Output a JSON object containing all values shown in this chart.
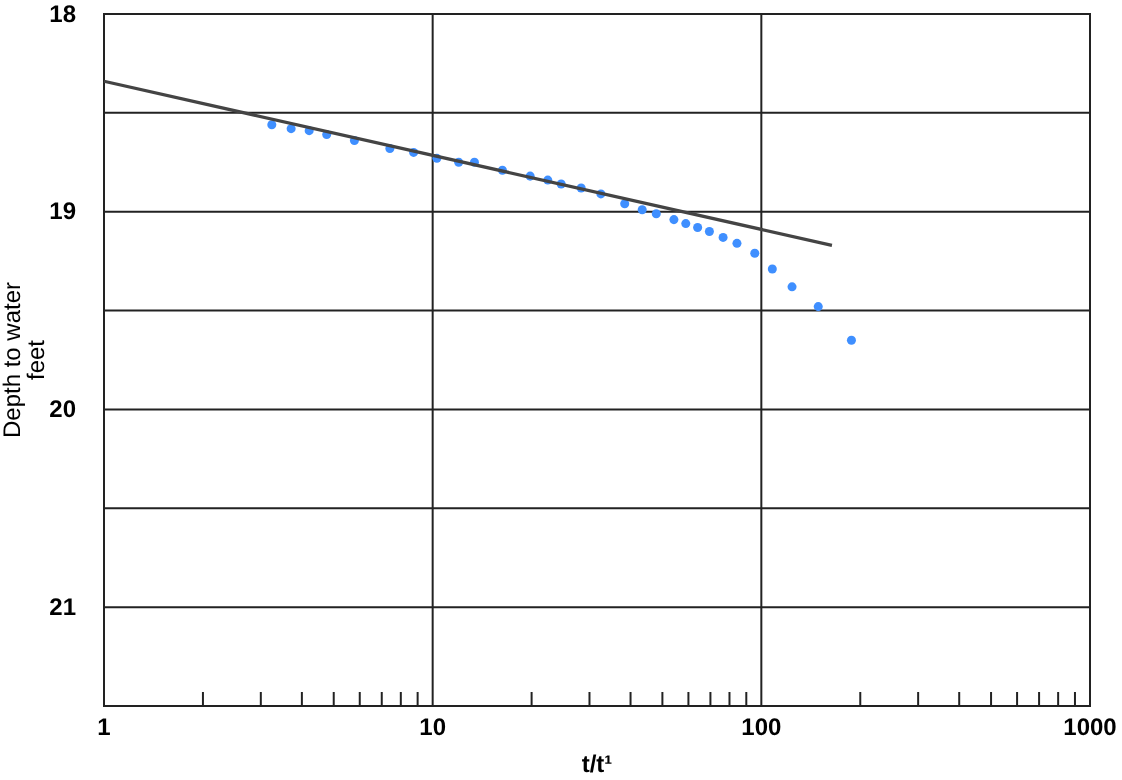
{
  "chart_data": {
    "type": "scatter",
    "xlabel": "t/t¹",
    "ylabel": "Depth to water\nfeet",
    "log": "x",
    "grid": true,
    "xlim": [
      1,
      1000
    ],
    "xticks": [
      1,
      {
        "value": 2,
        "label": null
      },
      {
        "value": 3,
        "label": null
      },
      {
        "value": 4,
        "label": null
      },
      {
        "value": 5,
        "label": null
      },
      {
        "value": 6,
        "label": null
      },
      {
        "value": 7,
        "label": null
      },
      {
        "value": 8,
        "label": null
      },
      {
        "value": 9,
        "label": null
      },
      10,
      {
        "value": 20,
        "label": null
      },
      {
        "value": 30,
        "label": null
      },
      {
        "value": 40,
        "label": null
      },
      {
        "value": 50,
        "label": null
      },
      {
        "value": 60,
        "label": null
      },
      {
        "value": 70,
        "label": null
      },
      {
        "value": 80,
        "label": null
      },
      {
        "value": 90,
        "label": null
      },
      100,
      {
        "value": 200,
        "label": null
      },
      {
        "value": 300,
        "label": null
      },
      {
        "value": 400,
        "label": null
      },
      {
        "value": 500,
        "label": null
      },
      {
        "value": 600,
        "label": null
      },
      {
        "value": 700,
        "label": null
      },
      {
        "value": 800,
        "label": null
      },
      {
        "value": 900,
        "label": null
      },
      1000
    ],
    "ylim": [
      21.5,
      18
    ],
    "yticks": [
      18,
      {
        "value": 18.5,
        "label": null
      },
      19,
      {
        "value": 19.5,
        "label": null
      },
      20,
      {
        "value": 20.5,
        "label": null
      },
      21,
      {
        "value": 21.5,
        "label": null
      }
    ],
    "series": [
      {
        "marker": "circle",
        "color": "#3f8fff",
        "x": [
          3.24,
          3.71,
          4.21,
          4.76,
          5.78,
          7.41,
          8.75,
          10.3,
          12.0,
          13.4,
          16.3,
          19.8,
          22.4,
          24.6,
          28.3,
          32.5,
          38.4,
          43.4,
          47.9,
          54.2,
          58.9,
          64.0,
          69.5,
          76.5,
          84.3,
          95.5,
          108,
          124,
          149,
          188
        ],
        "values": [
          18.56,
          18.58,
          18.59,
          18.61,
          18.64,
          18.68,
          18.7,
          18.73,
          18.75,
          18.75,
          18.79,
          18.82,
          18.84,
          18.86,
          18.88,
          18.91,
          18.96,
          18.99,
          19.01,
          19.04,
          19.06,
          19.08,
          19.1,
          19.13,
          19.16,
          19.21,
          19.29,
          19.38,
          19.48,
          19.65
        ]
      },
      {
        "type": "line",
        "color": "#444444",
        "x": [
          1,
          164
        ],
        "values": [
          18.34,
          19.17
        ]
      }
    ]
  }
}
